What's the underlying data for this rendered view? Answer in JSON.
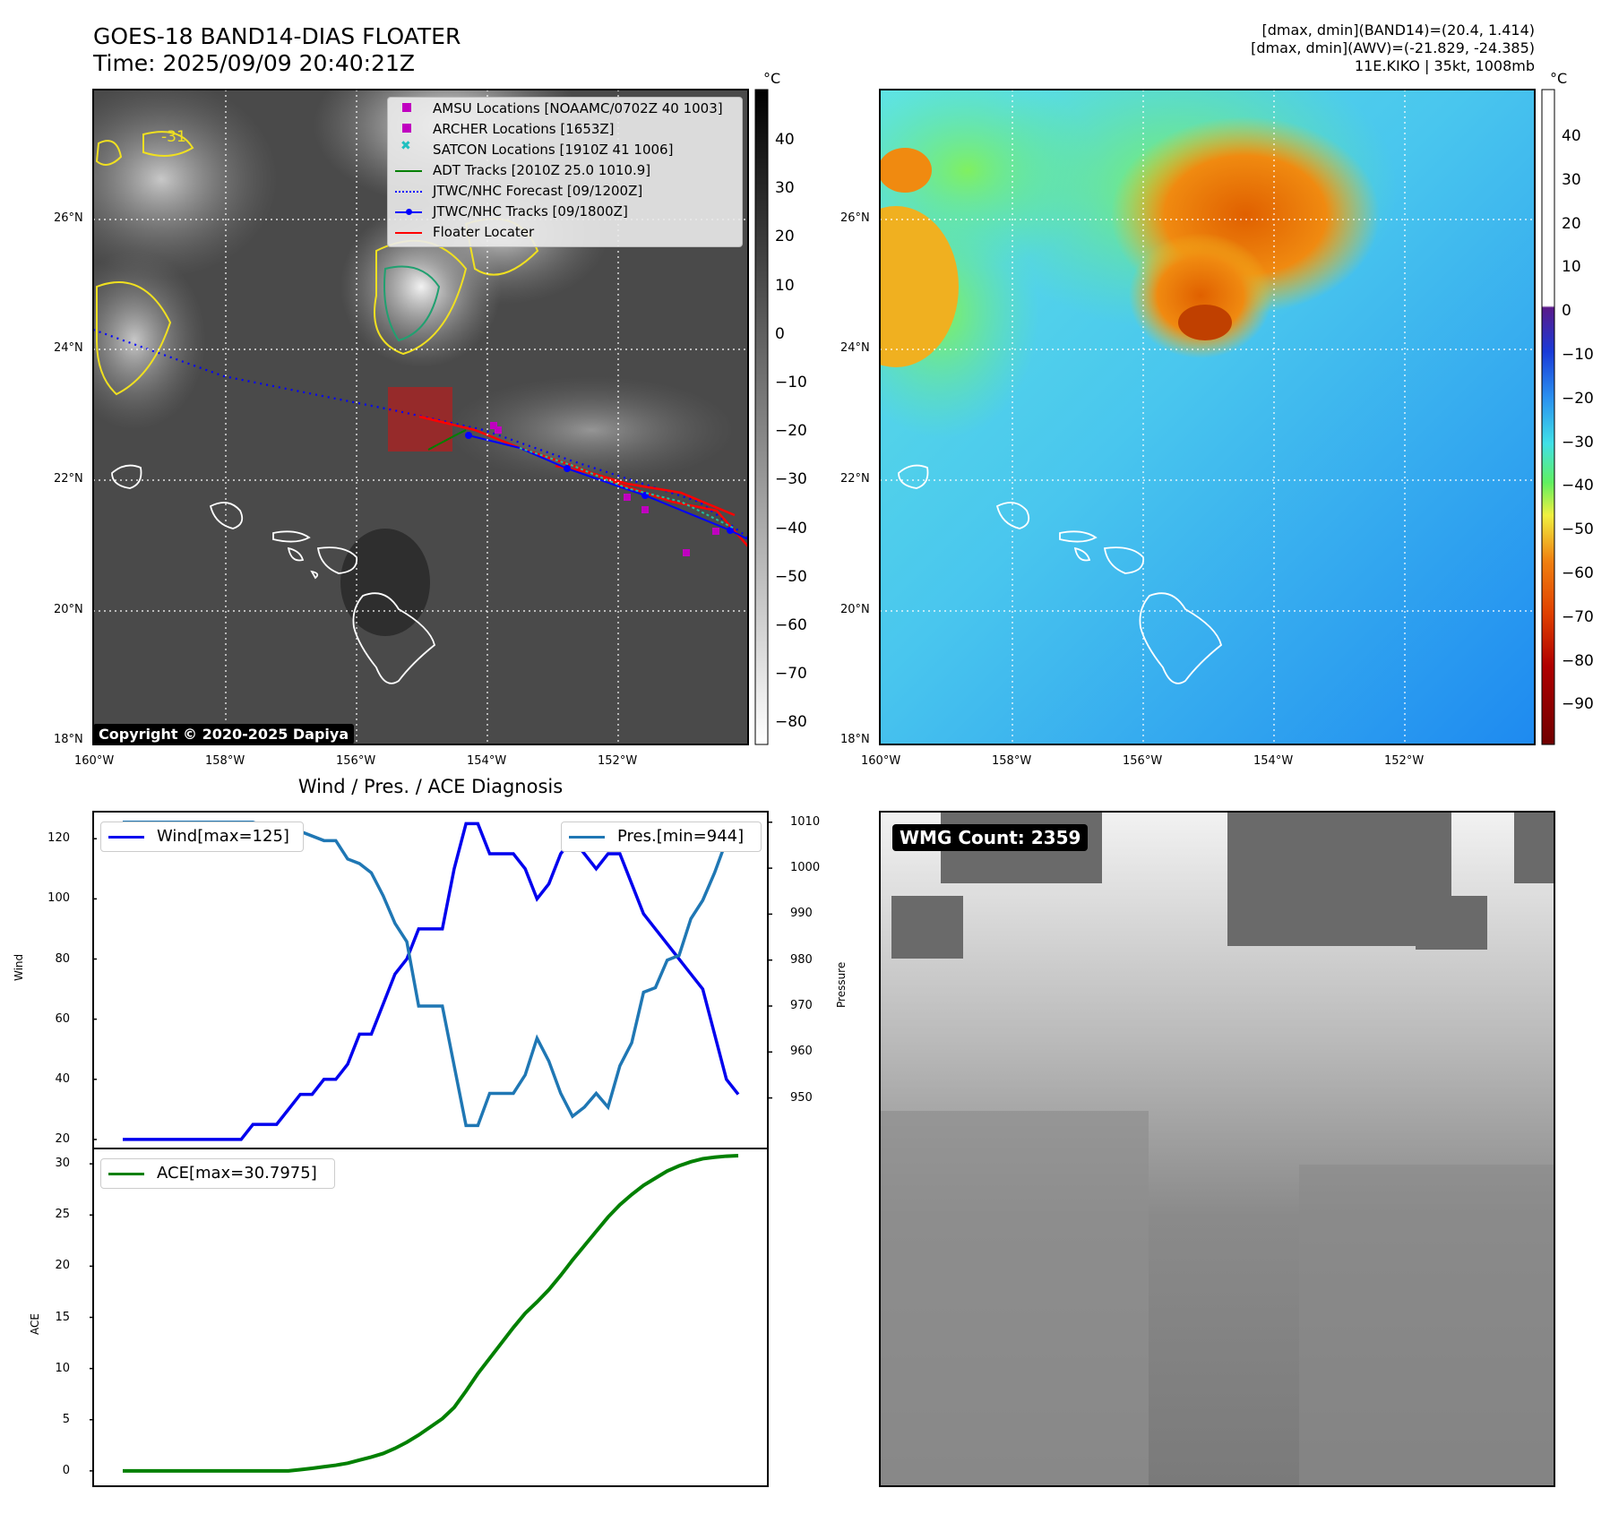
{
  "header": {
    "title_line1": "GOES-18 BAND14-DIAS FLOATER",
    "title_line2": "Time: 2025/09/09 20:40:21Z",
    "info_line1": "[dmax, dmin](BAND14)=(20.4, 1.414)",
    "info_line2": "[dmax, dmin](AWV)=(-21.829, -24.385)",
    "info_line3": "11E.KIKO | 35kt, 1008mb"
  },
  "map": {
    "lat_labels": [
      "26°N",
      "24°N",
      "22°N",
      "20°N",
      "18°N"
    ],
    "lon_labels": [
      "160°W",
      "158°W",
      "156°W",
      "154°W",
      "152°W"
    ],
    "contour_label": "-31",
    "copyright": "Copyright © 2020-2025 Dapiya",
    "legend": [
      {
        "label": "AMSU Locations [NOAAMC/0702Z 40 1003]",
        "color": "#c000c0",
        "marker": "square"
      },
      {
        "label": "ARCHER Locations [1653Z]",
        "color": "#c000c0",
        "marker": "square"
      },
      {
        "label": "SATCON Locations [1910Z 41 1006]",
        "color": "#20c0c0",
        "marker": "x"
      },
      {
        "label": "ADT Tracks [2010Z 25.0 1010.9]",
        "color": "#008000",
        "marker": "line"
      },
      {
        "label": "JTWC/NHC Forecast [09/1200Z]",
        "color": "#0000ff",
        "marker": "dotted"
      },
      {
        "label": "JTWC/NHC Tracks [09/1800Z]",
        "color": "#0000ff",
        "marker": "line-dot"
      },
      {
        "label": "Floater Locater",
        "color": "#ff0000",
        "marker": "line"
      }
    ]
  },
  "colorbar_ir": {
    "unit": "°C",
    "ticks": [
      "40",
      "30",
      "20",
      "10",
      "0",
      "−10",
      "−20",
      "−30",
      "−40",
      "−50",
      "−60",
      "−70",
      "−80"
    ]
  },
  "colorbar_wv": {
    "unit": "°C",
    "ticks": [
      "40",
      "30",
      "20",
      "10",
      "0",
      "−10",
      "−20",
      "−30",
      "−40",
      "−50",
      "−60",
      "−70",
      "−80",
      "−90"
    ]
  },
  "wmg": {
    "label": "WMG Count: 2359"
  },
  "chart_data": [
    {
      "type": "line",
      "title": "Wind / Pres. / ACE Diagnosis",
      "ylabel": "Wind",
      "y2label": "Pressure",
      "ylim": [
        17,
        129
      ],
      "y2lim": [
        939,
        1012.3
      ],
      "yticks": [
        20,
        40,
        60,
        80,
        100,
        120
      ],
      "y2ticks": [
        950,
        960,
        970,
        980,
        990,
        1000,
        1010
      ],
      "series": [
        {
          "name": "Wind[max=125]",
          "color": "#0000ee",
          "axis": "left",
          "values": [
            20,
            20,
            20,
            20,
            20,
            20,
            20,
            20,
            20,
            20,
            20,
            25,
            25,
            25,
            30,
            35,
            35,
            40,
            40,
            45,
            55,
            55,
            65,
            75,
            80,
            90,
            90,
            90,
            110,
            125,
            125,
            115,
            115,
            115,
            110,
            100,
            105,
            115,
            120,
            115,
            110,
            115,
            115,
            105,
            95,
            90,
            85,
            80,
            75,
            70,
            55,
            40,
            35
          ]
        },
        {
          "name": "Pres.[min=944]",
          "color": "#1f77b4",
          "axis": "right",
          "values": [
            1010,
            1010,
            1010,
            1010,
            1010,
            1010,
            1010,
            1010,
            1010,
            1010,
            1010,
            1010,
            1009,
            1009,
            1009,
            1008,
            1007,
            1006,
            1006,
            1002,
            1001,
            999,
            994,
            988,
            984,
            970,
            970,
            970,
            957,
            944,
            944,
            951,
            951,
            951,
            955,
            963,
            958,
            951,
            946,
            948,
            951,
            948,
            957,
            962,
            973,
            974,
            980,
            981,
            989,
            993,
            999,
            1006,
            1010
          ]
        }
      ]
    },
    {
      "type": "line",
      "ylabel": "ACE",
      "ylim": [
        -1.5,
        31.5
      ],
      "yticks": [
        0,
        5,
        10,
        15,
        20,
        25,
        30
      ],
      "series": [
        {
          "name": "ACE[max=30.7975]",
          "color": "#008000",
          "values": [
            0,
            0,
            0,
            0,
            0,
            0,
            0,
            0,
            0,
            0,
            0,
            0,
            0,
            0,
            0,
            0.12,
            0.25,
            0.4,
            0.55,
            0.75,
            1.05,
            1.35,
            1.7,
            2.2,
            2.8,
            3.5,
            4.3,
            5.1,
            6.2,
            7.8,
            9.5,
            11,
            12.5,
            14,
            15.4,
            16.5,
            17.7,
            19.1,
            20.6,
            22,
            23.4,
            24.8,
            26,
            27,
            27.9,
            28.6,
            29.3,
            29.8,
            30.2,
            30.5,
            30.65,
            30.75,
            30.8
          ]
        }
      ]
    }
  ]
}
